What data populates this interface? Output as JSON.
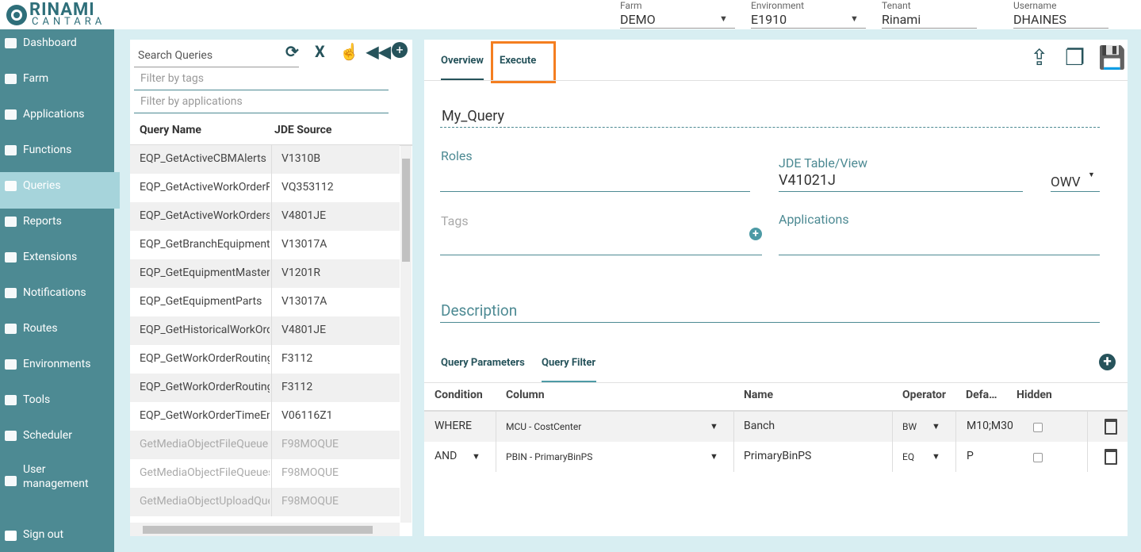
{
  "header": {
    "logo": "RINAMI",
    "logo_sub": "CANTARA",
    "fields": [
      {
        "label": "Farm",
        "value": "DEMO"
      },
      {
        "label": "Environment",
        "value": "E1910"
      },
      {
        "label": "Tenant",
        "value": "Rinami"
      },
      {
        "label": "Username",
        "value": "DHAINES"
      }
    ]
  },
  "sidebar": {
    "items": [
      "Dashboard",
      "Farm",
      "Applications",
      "Functions",
      "Queries",
      "Reports",
      "Extensions",
      "Notifications",
      "Routes",
      "Environments",
      "Tools",
      "Scheduler",
      "User management"
    ],
    "active": 4,
    "sign_out": "Sign out"
  },
  "query_list": {
    "search_placeholder": "Search Queries",
    "filter_tags": "Filter by tags",
    "filter_apps": "Filter by applications",
    "columns": [
      "Query Name",
      "JDE Source"
    ],
    "rows": [
      {
        "name": "EQP_GetActiveCBMAlerts",
        "source": "V1310B"
      },
      {
        "name": "EQP_GetActiveWorkOrderR",
        "source": "VQ353112"
      },
      {
        "name": "EQP_GetActiveWorkOrders",
        "source": "V4801JE"
      },
      {
        "name": "EQP_GetBranchEquipment",
        "source": "V13017A"
      },
      {
        "name": "EQP_GetEquipmentMaster",
        "source": "V1201R"
      },
      {
        "name": "EQP_GetEquipmentParts",
        "source": "V13017A"
      },
      {
        "name": "EQP_GetHistoricalWorkOrd",
        "source": "V4801JE"
      },
      {
        "name": "EQP_GetWorkOrderRouting",
        "source": "F3112"
      },
      {
        "name": "EQP_GetWorkOrderRouting",
        "source": "F3112"
      },
      {
        "name": "EQP_GetWorkOrderTimeEn",
        "source": "V06116Z1"
      },
      {
        "name": "GetMediaObjectFileQueue",
        "source": "F98MOQUE",
        "inactive": true
      },
      {
        "name": "GetMediaObjectFileQueues",
        "source": "F98MOQUE",
        "inactive": true
      },
      {
        "name": "GetMediaObjectUploadQue",
        "source": "F98MOQUE",
        "inactive": true
      }
    ]
  },
  "editor": {
    "tabs": [
      "Overview",
      "Execute"
    ],
    "query_name": "My_Query",
    "roles_label": "Roles",
    "jde_label": "JDE Table/View",
    "jde_value": "V41021J",
    "jde_type": "OWV",
    "tags_label": "Tags",
    "applications_label": "Applications",
    "description_placeholder": "Description",
    "sub_tabs": [
      "Query Parameters",
      "Query Filter"
    ],
    "filter_columns": [
      "Condition",
      "Column",
      "Name",
      "Operator",
      "Defa…",
      "Hidden"
    ],
    "filter_rows": [
      {
        "condition": "WHERE",
        "column": "MCU - CostCenter",
        "name": "Banch",
        "operator": "BW",
        "default": "M10;M30"
      },
      {
        "condition": "AND",
        "column": "PBIN - PrimaryBinPS",
        "name": "PrimaryBinPS",
        "operator": "EQ",
        "default": "P"
      }
    ]
  }
}
